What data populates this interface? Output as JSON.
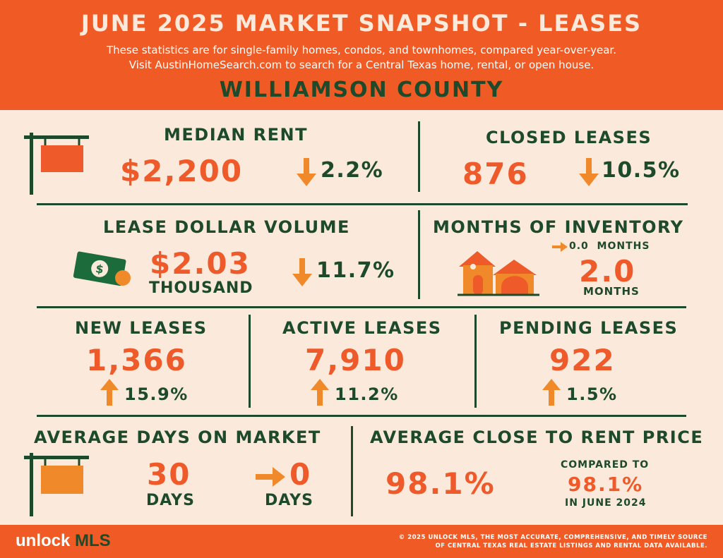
{
  "header": {
    "title": "JUNE 2025 MARKET SNAPSHOT - LEASES",
    "subtitle_line1": "These statistics are for single-family homes, condos, and townhomes, compared year-over-year.",
    "subtitle_line2": "Visit AustinHomeSearch.com to search for a Central Texas home, rental, or open house.",
    "county": "WILLIAMSON COUNTY"
  },
  "median_rent": {
    "label": "MEDIAN RENT",
    "value": "$2,200",
    "change": "2.2%",
    "direction": "down"
  },
  "closed_leases": {
    "label": "CLOSED LEASES",
    "value": "876",
    "change": "10.5%",
    "direction": "down"
  },
  "lease_dollar_volume": {
    "label": "LEASE DOLLAR VOLUME",
    "value": "$2.03",
    "unit": "THOUSAND",
    "change": "11.7%",
    "direction": "down"
  },
  "months_of_inventory": {
    "label": "MONTHS OF INVENTORY",
    "change": "0.0  MONTHS",
    "direction": "flat",
    "value": "2.0",
    "unit": "MONTHS"
  },
  "new_leases": {
    "label": "NEW LEASES",
    "value": "1,366",
    "change": "15.9%",
    "direction": "up"
  },
  "active_leases": {
    "label": "ACTIVE LEASES",
    "value": "7,910",
    "change": "11.2%",
    "direction": "up"
  },
  "pending_leases": {
    "label": "PENDING LEASES",
    "value": "922",
    "change": "1.5%",
    "direction": "up"
  },
  "avg_days_on_market": {
    "label": "AVERAGE DAYS ON MARKET",
    "value": "30",
    "unit": "DAYS",
    "change": "0",
    "change_unit": "DAYS",
    "direction": "flat"
  },
  "avg_close_to_rent": {
    "label": "AVERAGE CLOSE TO RENT PRICE",
    "value": "98.1%",
    "compared_label": "COMPARED TO",
    "compared_value": "98.1%",
    "compared_period": "IN JUNE 2024"
  },
  "footer": {
    "logo_unlock": "unlock ",
    "logo_mls": "MLS",
    "note_line1": "© 2025 UNLOCK MLS, THE MOST ACCURATE, COMPREHENSIVE, AND TIMELY SOURCE",
    "note_line2": "OF CENTRAL TEXAS REAL ESTATE LISTINGS AND RENTAL DATA AVAILABLE."
  },
  "colors": {
    "orange": "#f05a24",
    "green": "#1c4a2b",
    "cream": "#fbeadc",
    "arrow": "#f0892a"
  },
  "icons": [
    "hanging-sign-icon",
    "money-bill-icon",
    "house-icon",
    "down-arrow-icon",
    "up-arrow-icon",
    "right-arrow-icon"
  ]
}
